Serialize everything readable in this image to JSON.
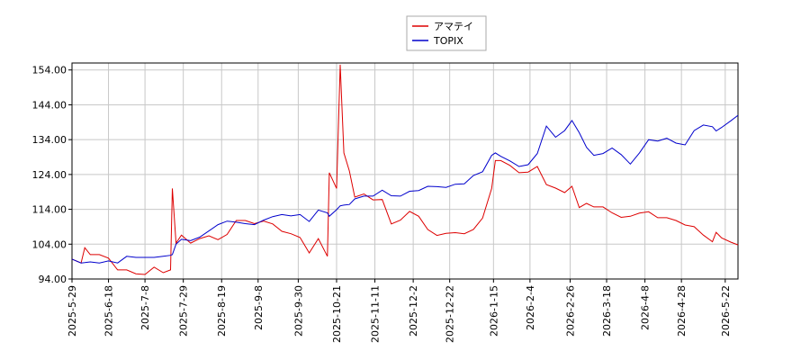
{
  "chart_data": {
    "type": "line",
    "x": [
      "2025-5-29",
      "2025-6-3",
      "2025-6-5",
      "2025-6-8",
      "2025-6-13",
      "2025-6-18",
      "2025-6-23",
      "2025-6-28",
      "2025-7-3",
      "2025-7-8",
      "2025-7-13",
      "2025-7-18",
      "2025-7-22",
      "2025-7-23",
      "2025-7-25",
      "2025-7-28",
      "2025-8-2",
      "2025-8-7",
      "2025-8-12",
      "2025-8-17",
      "2025-8-22",
      "2025-8-27",
      "2025-9-1",
      "2025-9-6",
      "2025-9-11",
      "2025-9-16",
      "2025-9-21",
      "2025-9-26",
      "2025-10-1",
      "2025-10-6",
      "2025-10-11",
      "2025-10-16",
      "2025-10-17",
      "2025-10-21",
      "2025-10-23",
      "2025-10-25",
      "2025-10-28",
      "2025-10-31",
      "2025-11-5",
      "2025-11-10",
      "2025-11-15",
      "2025-11-20",
      "2025-11-25",
      "2025-11-30",
      "2025-12-5",
      "2025-12-10",
      "2025-12-15",
      "2025-12-20",
      "2025-12-25",
      "2025-12-30",
      "2026-1-4",
      "2026-1-9",
      "2026-1-14",
      "2026-1-16",
      "2026-1-19",
      "2026-1-24",
      "2026-1-29",
      "2026-2-3",
      "2026-2-8",
      "2026-2-13",
      "2026-2-18",
      "2026-2-23",
      "2026-2-27",
      "2026-3-3",
      "2026-3-7",
      "2026-3-11",
      "2026-3-16",
      "2026-3-21",
      "2026-3-26",
      "2026-3-31",
      "2026-4-5",
      "2026-4-10",
      "2026-4-15",
      "2026-4-20",
      "2026-4-25",
      "2026-4-30",
      "2026-5-5",
      "2026-5-10",
      "2026-5-15",
      "2026-5-17",
      "2026-5-20",
      "2026-5-25",
      "2026-5-29"
    ],
    "series": [
      {
        "name": "アマテイ",
        "color": "#dd0000",
        "values": [
          99.7,
          98.6,
          103,
          101,
          101,
          100,
          96.6,
          96.6,
          95.5,
          95.3,
          97.4,
          95.8,
          96.6,
          120,
          104.3,
          106.6,
          104.3,
          105.6,
          106.4,
          105.3,
          106.8,
          110.8,
          110.8,
          109.9,
          110.6,
          109.8,
          107.7,
          107,
          105.9,
          101.5,
          105.6,
          100.5,
          124.5,
          120,
          155.5,
          130.2,
          125,
          117.5,
          118.4,
          116.7,
          116.8,
          109.8,
          110.9,
          113.4,
          112,
          108.2,
          106.5,
          107.1,
          107.3,
          107,
          108.2,
          111.5,
          120,
          128,
          128,
          126.6,
          124.5,
          124.7,
          126.3,
          121.1,
          120.1,
          118.8,
          120.6,
          114.5,
          115.7,
          114.7,
          114.7,
          113,
          111.7,
          112,
          112.9,
          113.3,
          111.6,
          111.6,
          110.8,
          109.5,
          109,
          106.6,
          104.7,
          107.4,
          105.8,
          104.6,
          103.8
        ]
      },
      {
        "name": "TOPIX",
        "color": "#0000cc",
        "values": [
          99.7,
          98.6,
          98.7,
          98.9,
          98.6,
          99.2,
          98.6,
          100.5,
          100.2,
          100.2,
          100.2,
          100.5,
          100.8,
          101,
          104,
          105.4,
          105,
          106,
          107.8,
          109.6,
          110.6,
          110.3,
          109.9,
          109.6,
          110.9,
          111.9,
          112.5,
          112.1,
          112.5,
          110.5,
          113.8,
          113,
          112,
          113.9,
          115,
          115.2,
          115.4,
          117,
          117.8,
          117.8,
          119.5,
          117.9,
          117.8,
          119.2,
          119.4,
          120.6,
          120.5,
          120.3,
          121.2,
          121.3,
          123.7,
          124.8,
          129.5,
          130.2,
          129.2,
          127.9,
          126.3,
          126.8,
          130,
          137.9,
          134.7,
          136.6,
          139.5,
          136,
          131.8,
          129.5,
          130,
          131.6,
          129.7,
          127,
          130.2,
          134,
          133.6,
          134.4,
          133,
          132.5,
          136.6,
          138.2,
          137.7,
          136.5,
          137.5,
          139.4,
          141
        ]
      }
    ],
    "xlim": [
      "2025-5-29",
      "2026-5-29"
    ],
    "xticks": [
      "2025-5-29",
      "2025-6-18",
      "2025-7-8",
      "2025-7-29",
      "2025-8-19",
      "2025-9-8",
      "2025-9-30",
      "2025-10-21",
      "2025-11-11",
      "2025-12-2",
      "2025-12-22",
      "2026-1-15",
      "2026-2-4",
      "2026-2-26",
      "2026-3-18",
      "2026-4-8",
      "2026-4-28",
      "2026-5-22"
    ],
    "ylim": [
      94,
      156
    ],
    "yticks": [
      {
        "value": 94,
        "label": "94.00"
      },
      {
        "value": 104,
        "label": "104.00"
      },
      {
        "value": 114,
        "label": "114.00"
      },
      {
        "value": 124,
        "label": "124.00"
      },
      {
        "value": 134,
        "label": "134.00"
      },
      {
        "value": 144,
        "label": "144.00"
      },
      {
        "value": 154,
        "label": "154.00"
      }
    ],
    "grid": true,
    "legend": "top"
  }
}
